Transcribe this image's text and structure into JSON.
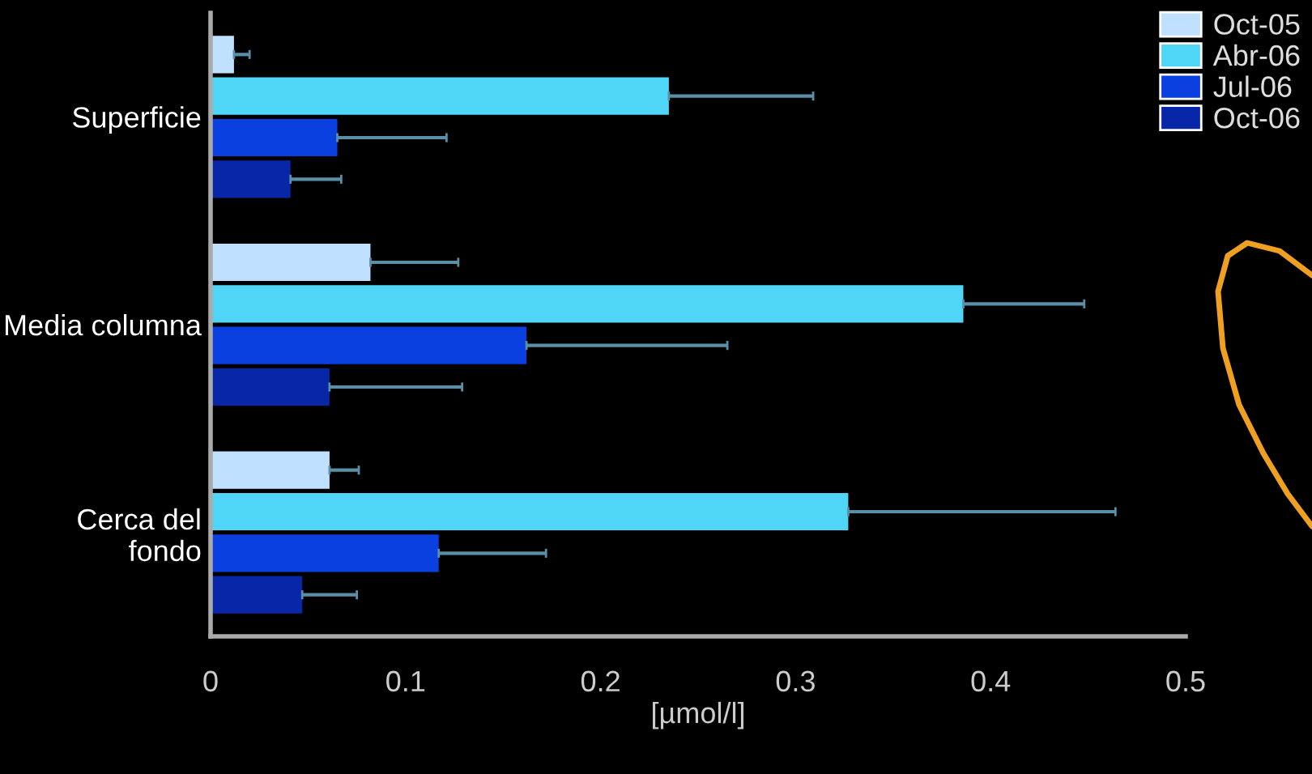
{
  "chart_data": {
    "type": "bar",
    "orientation": "horizontal",
    "xlabel": "[µmol/l]",
    "categories": [
      "Superficie",
      "Media columna",
      "Cerca del fondo"
    ],
    "series": [
      {
        "name": "Oct-05",
        "color": "#bfe0ff",
        "values": [
          0.012,
          0.082,
          0.061
        ],
        "errors": [
          [
            0.012,
            0.02
          ],
          [
            0.082,
            0.127
          ],
          [
            0.061,
            0.076
          ]
        ]
      },
      {
        "name": "Abr-06",
        "color": "#4fd6f7",
        "values": [
          0.235,
          0.386,
          0.327
        ],
        "errors": [
          [
            0.235,
            0.309
          ],
          [
            0.386,
            0.448
          ],
          [
            0.327,
            0.464
          ]
        ]
      },
      {
        "name": "Jul-06",
        "color": "#0a3fe0",
        "values": [
          0.065,
          0.162,
          0.117
        ],
        "errors": [
          [
            0.065,
            0.121
          ],
          [
            0.162,
            0.265
          ],
          [
            0.117,
            0.172
          ]
        ]
      },
      {
        "name": "Oct-06",
        "color": "#0826a8",
        "values": [
          0.041,
          0.061,
          0.047
        ],
        "errors": [
          [
            0.041,
            0.067
          ],
          [
            0.061,
            0.129
          ],
          [
            0.047,
            0.075
          ]
        ]
      }
    ],
    "xlim": [
      0,
      0.5
    ],
    "xticks": [
      0,
      0.1,
      0.2,
      0.3,
      0.4,
      0.5
    ],
    "grid": false,
    "legend": "top right"
  }
}
